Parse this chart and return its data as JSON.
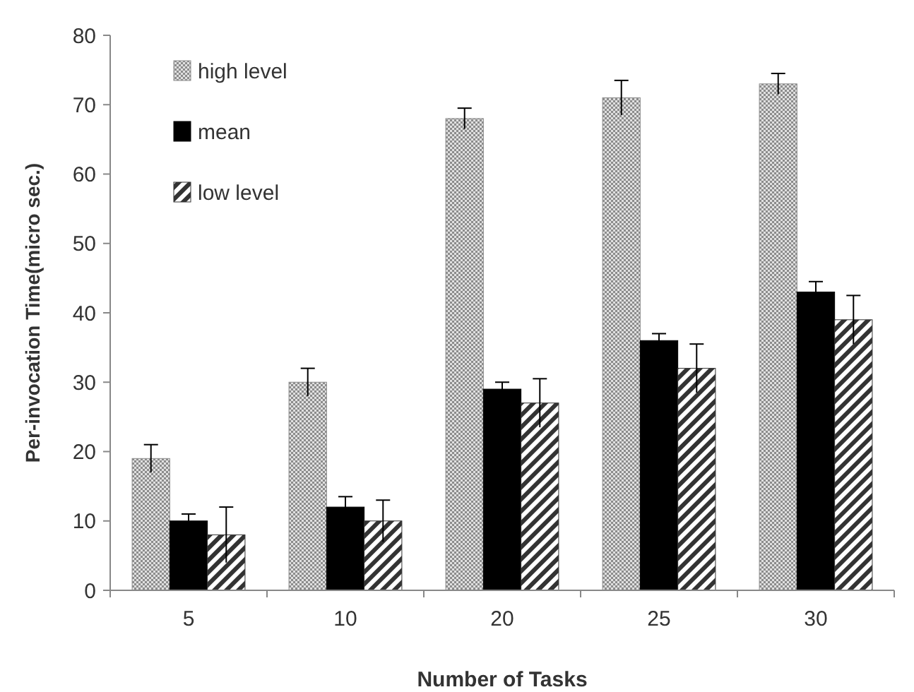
{
  "chart_data": {
    "type": "bar",
    "xlabel": "Number of Tasks",
    "ylabel": "Per-invocation Time(micro sec.)",
    "categories": [
      "5",
      "10",
      "20",
      "25",
      "30"
    ],
    "series": [
      {
        "name": "high level",
        "color": "#8c8c8c",
        "values": [
          19,
          30,
          68,
          71,
          73
        ],
        "errors": [
          2,
          2,
          1.5,
          2.5,
          1.5
        ]
      },
      {
        "name": "mean",
        "color": "#000000",
        "values": [
          10,
          12,
          29,
          36,
          43
        ],
        "errors": [
          1,
          1.5,
          1,
          1,
          1.5
        ]
      },
      {
        "name": "low level",
        "color": "#333333",
        "values": [
          8,
          10,
          27,
          32,
          39
        ],
        "errors": [
          4,
          3,
          3.5,
          3.5,
          3.5
        ]
      }
    ],
    "ylim": [
      0,
      80
    ],
    "yticks": [
      0,
      10,
      20,
      30,
      40,
      50,
      60,
      70,
      80
    ],
    "grid": false,
    "legend": "top left"
  }
}
